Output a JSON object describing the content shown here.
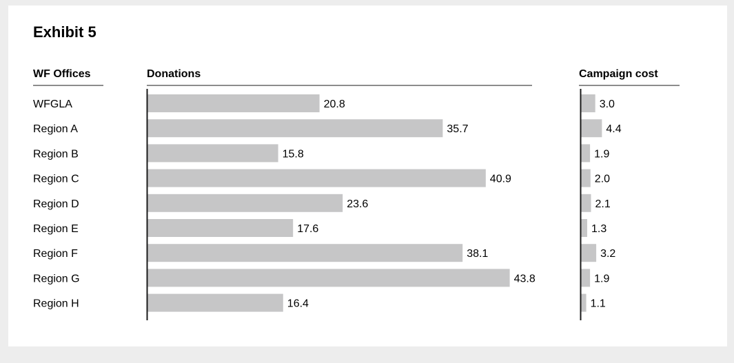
{
  "chart_data": {
    "type": "bar",
    "title": "Exhibit 5",
    "category_header": "WF Offices",
    "categories": [
      "WFGLA",
      "Region A",
      "Region B",
      "Region C",
      "Region D",
      "Region E",
      "Region F",
      "Region G",
      "Region H"
    ],
    "series": [
      {
        "name": "Donations",
        "values": [
          20.8,
          35.7,
          15.8,
          40.9,
          23.6,
          17.6,
          38.1,
          43.8,
          16.4
        ],
        "labels": [
          "20.8",
          "35.7",
          "15.8",
          "40.9",
          "23.6",
          "17.6",
          "38.1",
          "43.8",
          "16.4"
        ]
      },
      {
        "name": "Campaign cost",
        "values": [
          3.0,
          4.4,
          1.9,
          2.0,
          2.1,
          1.3,
          3.2,
          1.9,
          1.1
        ],
        "labels": [
          "3.0",
          "4.4",
          "1.9",
          "2.0",
          "2.1",
          "1.3",
          "3.2",
          "1.9",
          "1.1"
        ]
      }
    ],
    "orientation": "horizontal",
    "grid": false,
    "bar_color": "#c6c6c7",
    "axis_color": "#1a1a1a"
  }
}
